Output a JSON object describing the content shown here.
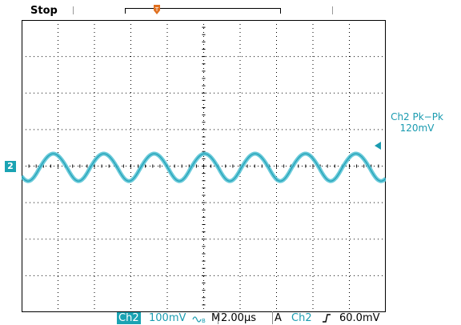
{
  "header": {
    "status": "Stop"
  },
  "markers": {
    "ch2_ref": "2",
    "trigger_T": "T"
  },
  "measurement": {
    "label": "Ch2 Pk−Pk",
    "value": "120mV"
  },
  "footer": {
    "channel": "Ch2",
    "volts_div": "100mV",
    "coupling_icon": "ac-bw-limit-icon",
    "timebase_prefix": "M",
    "timebase": "2.00µs",
    "trigger_mode": "A",
    "trigger_source": "Ch2",
    "trigger_slope_icon": "rising-edge-icon",
    "trigger_level": "60.0mV"
  },
  "colors": {
    "trace": "#4fc1d4",
    "trace_dark": "#1a9bb0",
    "trigger": "#e07020",
    "grid": "#000000"
  }
}
